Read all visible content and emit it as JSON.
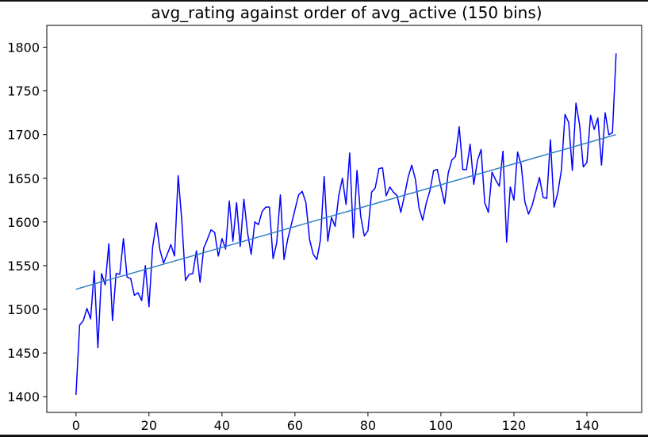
{
  "chart_data": {
    "type": "line",
    "title": "avg_rating against order of avg_active (150 bins)",
    "xlabel": "",
    "ylabel": "",
    "xlim": [
      -8,
      155
    ],
    "ylim": [
      1382,
      1825
    ],
    "grid": false,
    "xticks": [
      0,
      20,
      40,
      60,
      80,
      100,
      120,
      140
    ],
    "yticks": [
      1400,
      1450,
      1500,
      1550,
      1600,
      1650,
      1700,
      1750,
      1800
    ],
    "series": [
      {
        "color": "#0000ff",
        "x": [
          0,
          1,
          2,
          3,
          4,
          5,
          6,
          7,
          8,
          9,
          10,
          11,
          12,
          13,
          14,
          15,
          16,
          17,
          18,
          19,
          20,
          21,
          22,
          23,
          24,
          25,
          26,
          27,
          28,
          29,
          30,
          31,
          32,
          33,
          34,
          35,
          36,
          37,
          38,
          39,
          40,
          41,
          42,
          43,
          44,
          45,
          46,
          47,
          48,
          49,
          50,
          51,
          52,
          53,
          54,
          55,
          56,
          57,
          58,
          59,
          60,
          61,
          62,
          63,
          64,
          65,
          66,
          67,
          68,
          69,
          70,
          71,
          72,
          73,
          74,
          75,
          76,
          77,
          78,
          79,
          80,
          81,
          82,
          83,
          84,
          85,
          86,
          87,
          88,
          89,
          90,
          91,
          92,
          93,
          94,
          95,
          96,
          97,
          98,
          99,
          100,
          101,
          102,
          103,
          104,
          105,
          106,
          107,
          108,
          109,
          110,
          111,
          112,
          113,
          114,
          115,
          116,
          117,
          118,
          119,
          120,
          121,
          122,
          123,
          124,
          125,
          126,
          127,
          128,
          129,
          130,
          131,
          132,
          133,
          134,
          135,
          136,
          137,
          138,
          139,
          140,
          141,
          142,
          143,
          144,
          145,
          146,
          147,
          148
        ],
        "values": [
          1402,
          1482,
          1487,
          1501,
          1489,
          1544,
          1456,
          1541,
          1528,
          1575,
          1487,
          1541,
          1540,
          1581,
          1537,
          1535,
          1516,
          1519,
          1510,
          1550,
          1503,
          1571,
          1599,
          1568,
          1553,
          1563,
          1574,
          1561,
          1653,
          1601,
          1533,
          1540,
          1541,
          1567,
          1531,
          1570,
          1580,
          1591,
          1588,
          1561,
          1581,
          1569,
          1624,
          1578,
          1622,
          1572,
          1626,
          1588,
          1563,
          1600,
          1597,
          1612,
          1617,
          1617,
          1558,
          1576,
          1631,
          1557,
          1580,
          1597,
          1614,
          1631,
          1635,
          1622,
          1580,
          1563,
          1557,
          1580,
          1652,
          1578,
          1605,
          1595,
          1630,
          1650,
          1620,
          1679,
          1582,
          1659,
          1607,
          1584,
          1590,
          1634,
          1639,
          1661,
          1662,
          1630,
          1640,
          1634,
          1630,
          1611,
          1630,
          1651,
          1665,
          1649,
          1616,
          1602,
          1622,
          1636,
          1659,
          1660,
          1640,
          1621,
          1656,
          1671,
          1675,
          1709,
          1660,
          1660,
          1689,
          1643,
          1670,
          1683,
          1622,
          1611,
          1657,
          1648,
          1641,
          1681,
          1577,
          1640,
          1625,
          1680,
          1665,
          1623,
          1609,
          1619,
          1635,
          1651,
          1628,
          1627,
          1694,
          1617,
          1633,
          1659,
          1723,
          1714,
          1659,
          1736,
          1711,
          1663,
          1668,
          1722,
          1706,
          1719,
          1665,
          1725,
          1700,
          1702,
          1793
        ]
      },
      {
        "color": "#2f7fc4",
        "x": [
          0,
          148
        ],
        "values": [
          1523,
          1700
        ]
      }
    ]
  }
}
